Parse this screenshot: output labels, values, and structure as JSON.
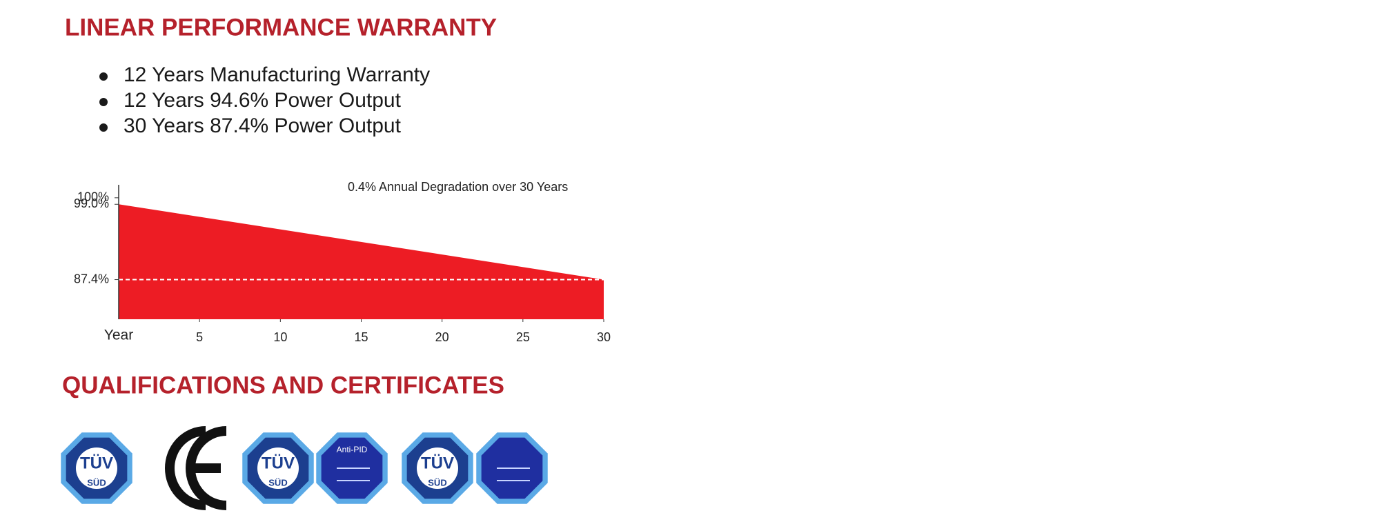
{
  "header": {
    "title": "LINEAR PERFORMANCE WARRANTY"
  },
  "bullets": [
    "12 Years Manufacturing Warranty",
    "12 Years 94.6% Power Output",
    "30 Years 87.4% Power Output"
  ],
  "chart_data": {
    "type": "area",
    "annotation": "0.4% Annual Degradation over 30 Years",
    "x_label": "Year",
    "x": [
      0,
      30
    ],
    "values": [
      99.0,
      87.4
    ],
    "color": "#ed1c24",
    "xlim": [
      0,
      30
    ],
    "xticks": [
      5,
      10,
      15,
      20,
      25,
      30
    ],
    "ylim": [
      81.3,
      102
    ],
    "yticks": [
      {
        "value": 100,
        "label": "100%"
      },
      {
        "value": 99.0,
        "label": "99.0%"
      },
      {
        "value": 87.4,
        "label": "87.4%"
      }
    ],
    "hline": 87.4
  },
  "section2": {
    "title": "QUALIFICATIONS AND CERTIFICATES"
  },
  "certificates": {
    "tuv": "TÜV",
    "sud": "SÜD",
    "anti_pid": "Anti-PID"
  }
}
